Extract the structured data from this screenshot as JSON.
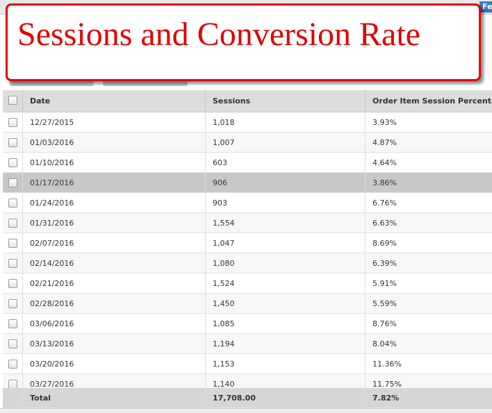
{
  "annotation": {
    "title": "Sessions and Conversion Rate"
  },
  "toolbar": {
    "button": "Fe"
  },
  "table": {
    "columns": [
      "Date",
      "Sessions",
      "Order Item Session Percenta"
    ],
    "rows": [
      [
        "12/27/2015",
        "1,018",
        "3.93%"
      ],
      [
        "01/03/2016",
        "1,007",
        "4.87%"
      ],
      [
        "01/10/2016",
        "603",
        "4.64%"
      ],
      [
        "01/17/2016",
        "906",
        "3.86%"
      ],
      [
        "01/24/2016",
        "903",
        "6.76%"
      ],
      [
        "01/31/2016",
        "1,554",
        "6.63%"
      ],
      [
        "02/07/2016",
        "1,047",
        "8.69%"
      ],
      [
        "02/14/2016",
        "1,080",
        "6.39%"
      ],
      [
        "02/21/2016",
        "1,524",
        "5.91%"
      ],
      [
        "02/28/2016",
        "1,450",
        "5.59%"
      ],
      [
        "03/06/2016",
        "1,085",
        "8.76%"
      ],
      [
        "03/13/2016",
        "1,194",
        "8.04%"
      ],
      [
        "03/20/2016",
        "1,153",
        "11.36%"
      ],
      [
        "03/27/2016",
        "1,140",
        "11.75%"
      ]
    ],
    "total": [
      "Total",
      "17,708.00",
      "7.82%"
    ]
  }
}
